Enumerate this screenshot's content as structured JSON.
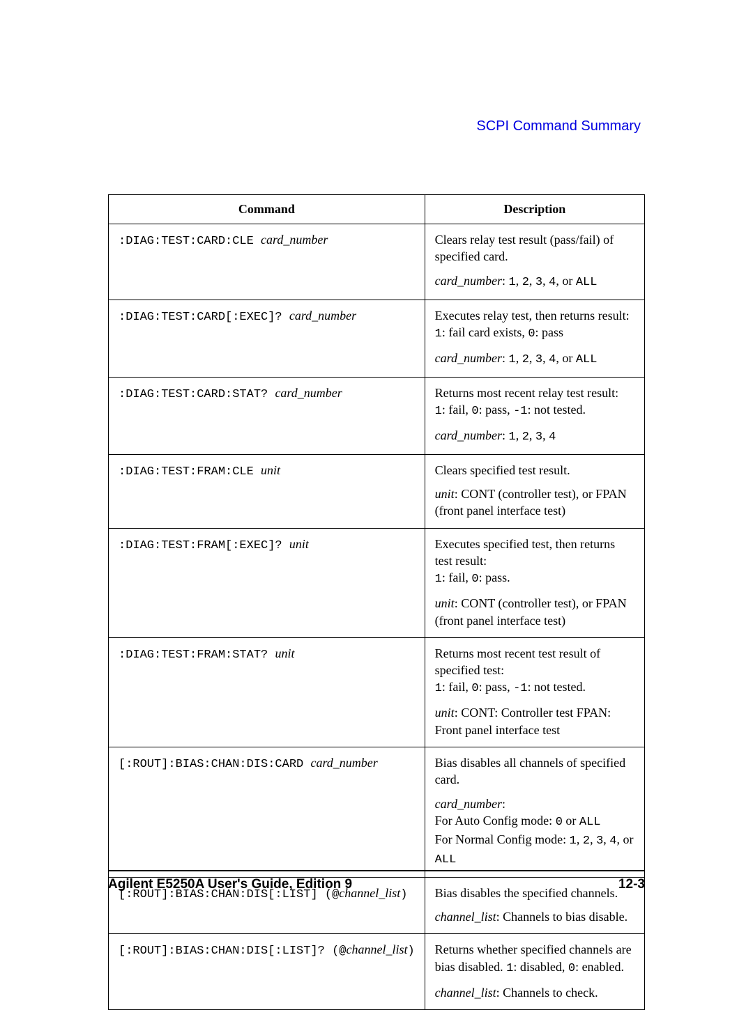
{
  "header": {
    "title": "SCPI Command Summary",
    "color": "#0000e0"
  },
  "table": {
    "type": "table",
    "columns": [
      "Command",
      "Description"
    ],
    "column_widths": [
      "50%",
      "50%"
    ],
    "border_color": "#000000",
    "background_color": "#ffffff",
    "header_fontsize": 18,
    "body_fontsize": 18,
    "mono_fontsize": 17,
    "rows": [
      {
        "cmd_parts": [
          ":DIAG:TEST:CARD:CLE  "
        ],
        "cmd_param": "card_number",
        "desc": [
          [
            {
              "t": "Clears relay test result (pass/fail) of specified card."
            }
          ],
          [
            {
              "t": "card_number",
              "i": true
            },
            {
              "t": ": "
            },
            {
              "t": "1",
              "m": true
            },
            {
              "t": ", "
            },
            {
              "t": "2",
              "m": true
            },
            {
              "t": ", "
            },
            {
              "t": "3",
              "m": true
            },
            {
              "t": ", "
            },
            {
              "t": "4",
              "m": true
            },
            {
              "t": ", or "
            },
            {
              "t": "ALL",
              "m": true
            }
          ]
        ]
      },
      {
        "cmd_parts": [
          ":DIAG:TEST:CARD[:EXEC]?  "
        ],
        "cmd_param": "card_number",
        "desc": [
          [
            {
              "t": "Executes relay test, then returns result:"
            },
            {
              "br": true
            },
            {
              "t": "1",
              "m": true
            },
            {
              "t": ": fail card exists, "
            },
            {
              "t": "0",
              "m": true
            },
            {
              "t": ": pass"
            }
          ],
          [
            {
              "t": "card_number",
              "i": true
            },
            {
              "t": ": "
            },
            {
              "t": "1",
              "m": true
            },
            {
              "t": ", "
            },
            {
              "t": "2",
              "m": true
            },
            {
              "t": ", "
            },
            {
              "t": "3",
              "m": true
            },
            {
              "t": ", "
            },
            {
              "t": "4",
              "m": true
            },
            {
              "t": ", or "
            },
            {
              "t": "ALL",
              "m": true
            }
          ]
        ]
      },
      {
        "cmd_parts": [
          ":DIAG:TEST:CARD:STAT?  "
        ],
        "cmd_param": "card_number",
        "desc": [
          [
            {
              "t": "Returns most recent relay test result:"
            },
            {
              "br": true
            },
            {
              "t": "1",
              "m": true
            },
            {
              "t": ": fail, "
            },
            {
              "t": "0",
              "m": true
            },
            {
              "t": ": pass, "
            },
            {
              "t": "-1",
              "m": true
            },
            {
              "t": ": not tested."
            }
          ],
          [
            {
              "t": "card_number",
              "i": true
            },
            {
              "t": ": "
            },
            {
              "t": "1",
              "m": true
            },
            {
              "t": ", "
            },
            {
              "t": "2",
              "m": true
            },
            {
              "t": ", "
            },
            {
              "t": "3",
              "m": true
            },
            {
              "t": ", "
            },
            {
              "t": "4",
              "m": true
            }
          ]
        ]
      },
      {
        "cmd_parts": [
          ":DIAG:TEST:FRAM:CLE  "
        ],
        "cmd_param": "unit",
        "desc": [
          [
            {
              "t": "Clears specified test result."
            }
          ],
          [
            {
              "t": "unit",
              "i": true
            },
            {
              "t": ": CONT (controller test), or FPAN (front panel interface test)"
            }
          ]
        ]
      },
      {
        "cmd_parts": [
          ":DIAG:TEST:FRAM[:EXEC]?  "
        ],
        "cmd_param": "unit",
        "desc": [
          [
            {
              "t": "Executes specified test, then returns test result:"
            },
            {
              "br": true
            },
            {
              "t": "1",
              "m": true
            },
            {
              "t": ": fail, "
            },
            {
              "t": "0",
              "m": true
            },
            {
              "t": ": pass."
            }
          ],
          [
            {
              "t": "unit",
              "i": true
            },
            {
              "t": ": CONT (controller test), or FPAN (front panel interface test)"
            }
          ]
        ]
      },
      {
        "cmd_parts": [
          ":DIAG:TEST:FRAM:STAT?  "
        ],
        "cmd_param": "unit",
        "desc": [
          [
            {
              "t": "Returns most recent test result of specified test:"
            },
            {
              "br": true
            },
            {
              "t": "1",
              "m": true
            },
            {
              "t": ": fail, "
            },
            {
              "t": "0",
              "m": true
            },
            {
              "t": ": pass, "
            },
            {
              "t": "-1",
              "m": true
            },
            {
              "t": ": not tested."
            }
          ],
          [
            {
              "t": "unit",
              "i": true
            },
            {
              "t": ": CONT: Controller test FPAN: Front panel interface test"
            }
          ]
        ]
      },
      {
        "cmd_parts": [
          "[:ROUT]:BIAS:CHAN:DIS:CARD "
        ],
        "cmd_param": "card_number",
        "desc": [
          [
            {
              "t": "Bias disables all channels of specified card."
            }
          ],
          [
            {
              "t": "card_number",
              "i": true
            },
            {
              "t": ":"
            },
            {
              "br": true
            },
            {
              "t": "For Auto Config mode: "
            },
            {
              "t": "0",
              "m": true
            },
            {
              "t": " or "
            },
            {
              "t": "ALL",
              "m": true
            },
            {
              "br": true
            },
            {
              "t": "For Normal Config mode: "
            },
            {
              "t": "1",
              "m": true
            },
            {
              "t": ", "
            },
            {
              "t": "2",
              "m": true
            },
            {
              "t": ", "
            },
            {
              "t": "3",
              "m": true
            },
            {
              "t": ", "
            },
            {
              "t": "4",
              "m": true
            },
            {
              "t": ", or "
            },
            {
              "t": "ALL",
              "m": true
            }
          ]
        ]
      },
      {
        "cmd_parts": [
          "[:ROUT]:BIAS:CHAN:DIS[:LIST]  "
        ],
        "cmd_param_wrap": true,
        "cmd_param": "channel_list",
        "desc": [
          [
            {
              "t": "Bias disables the specified channels."
            }
          ],
          [
            {
              "t": "channel_list",
              "i": true
            },
            {
              "t": ": Channels to bias disable."
            }
          ]
        ]
      },
      {
        "cmd_parts": [
          "[:ROUT]:BIAS:CHAN:DIS[:LIST]? "
        ],
        "cmd_param_wrap": true,
        "cmd_param": "channel_list",
        "desc": [
          [
            {
              "t": "Returns whether specified channels are bias disabled. "
            },
            {
              "t": "1",
              "m": true
            },
            {
              "t": ": disabled, "
            },
            {
              "t": "0",
              "m": true
            },
            {
              "t": ": enabled."
            }
          ],
          [
            {
              "t": "channel_list",
              "i": true
            },
            {
              "t": ": Channels to check."
            }
          ]
        ]
      }
    ]
  },
  "footer": {
    "left": "Agilent E5250A User's Guide, Edition 9",
    "right": "12-3",
    "rule_color": "#000000",
    "fontsize": 19
  }
}
